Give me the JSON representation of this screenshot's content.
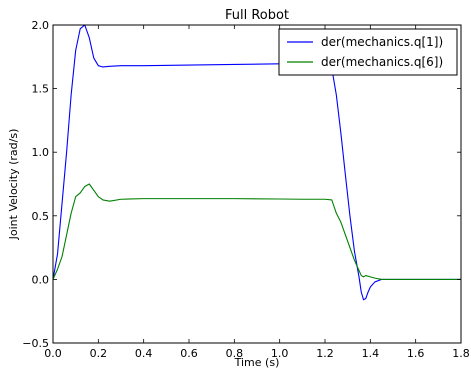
{
  "chart_data": {
    "type": "line",
    "title": "Full Robot",
    "xlabel": "Time (s)",
    "ylabel": "Joint Velocity (rad/s)",
    "xlim": [
      0.0,
      1.8
    ],
    "ylim": [
      -0.5,
      2.0
    ],
    "xticks": [
      0.0,
      0.2,
      0.4,
      0.6,
      0.8,
      1.0,
      1.2,
      1.4,
      1.6,
      1.8
    ],
    "xtick_labels": [
      "0.0",
      "0.2",
      "0.4",
      "0.6",
      "0.8",
      "1.0",
      "1.2",
      "1.4",
      "1.6",
      "1.8"
    ],
    "yticks": [
      -0.5,
      0.0,
      0.5,
      1.0,
      1.5,
      2.0
    ],
    "ytick_labels": [
      "−0.5",
      "0.0",
      "0.5",
      "1.0",
      "1.5",
      "2.0"
    ],
    "grid": false,
    "legend": "top-right",
    "series": [
      {
        "name": "der(mechanics.q[1])",
        "color": "#0000ff",
        "x": [
          0.0,
          0.02,
          0.04,
          0.06,
          0.08,
          0.1,
          0.12,
          0.14,
          0.16,
          0.18,
          0.2,
          0.22,
          0.25,
          0.3,
          0.4,
          0.6,
          0.8,
          1.0,
          1.1,
          1.2,
          1.23,
          1.25,
          1.27,
          1.29,
          1.31,
          1.33,
          1.35,
          1.36,
          1.37,
          1.38,
          1.39,
          1.4,
          1.42,
          1.45,
          1.5,
          1.6,
          1.7,
          1.8
        ],
        "y": [
          0.0,
          0.2,
          0.6,
          1.0,
          1.45,
          1.8,
          1.97,
          2.0,
          1.9,
          1.74,
          1.68,
          1.67,
          1.675,
          1.68,
          1.68,
          1.685,
          1.69,
          1.695,
          1.7,
          1.7,
          1.66,
          1.45,
          1.15,
          0.82,
          0.5,
          0.22,
          0.02,
          -0.1,
          -0.16,
          -0.15,
          -0.1,
          -0.06,
          -0.02,
          0.0,
          0.0,
          0.0,
          0.0,
          0.0
        ]
      },
      {
        "name": "der(mechanics.q[6])",
        "color": "#008000",
        "x": [
          0.0,
          0.02,
          0.04,
          0.06,
          0.08,
          0.1,
          0.12,
          0.14,
          0.16,
          0.18,
          0.2,
          0.22,
          0.25,
          0.3,
          0.4,
          0.6,
          0.8,
          1.0,
          1.1,
          1.2,
          1.23,
          1.25,
          1.27,
          1.29,
          1.31,
          1.33,
          1.35,
          1.36,
          1.37,
          1.38,
          1.4,
          1.42,
          1.45,
          1.5,
          1.6,
          1.7,
          1.8
        ],
        "y": [
          0.0,
          0.08,
          0.18,
          0.35,
          0.52,
          0.65,
          0.68,
          0.73,
          0.75,
          0.7,
          0.65,
          0.625,
          0.615,
          0.63,
          0.635,
          0.635,
          0.635,
          0.632,
          0.63,
          0.63,
          0.625,
          0.52,
          0.45,
          0.35,
          0.25,
          0.15,
          0.07,
          0.03,
          0.02,
          0.03,
          0.02,
          0.01,
          0.0,
          0.0,
          0.0,
          0.0,
          0.0
        ]
      }
    ]
  }
}
